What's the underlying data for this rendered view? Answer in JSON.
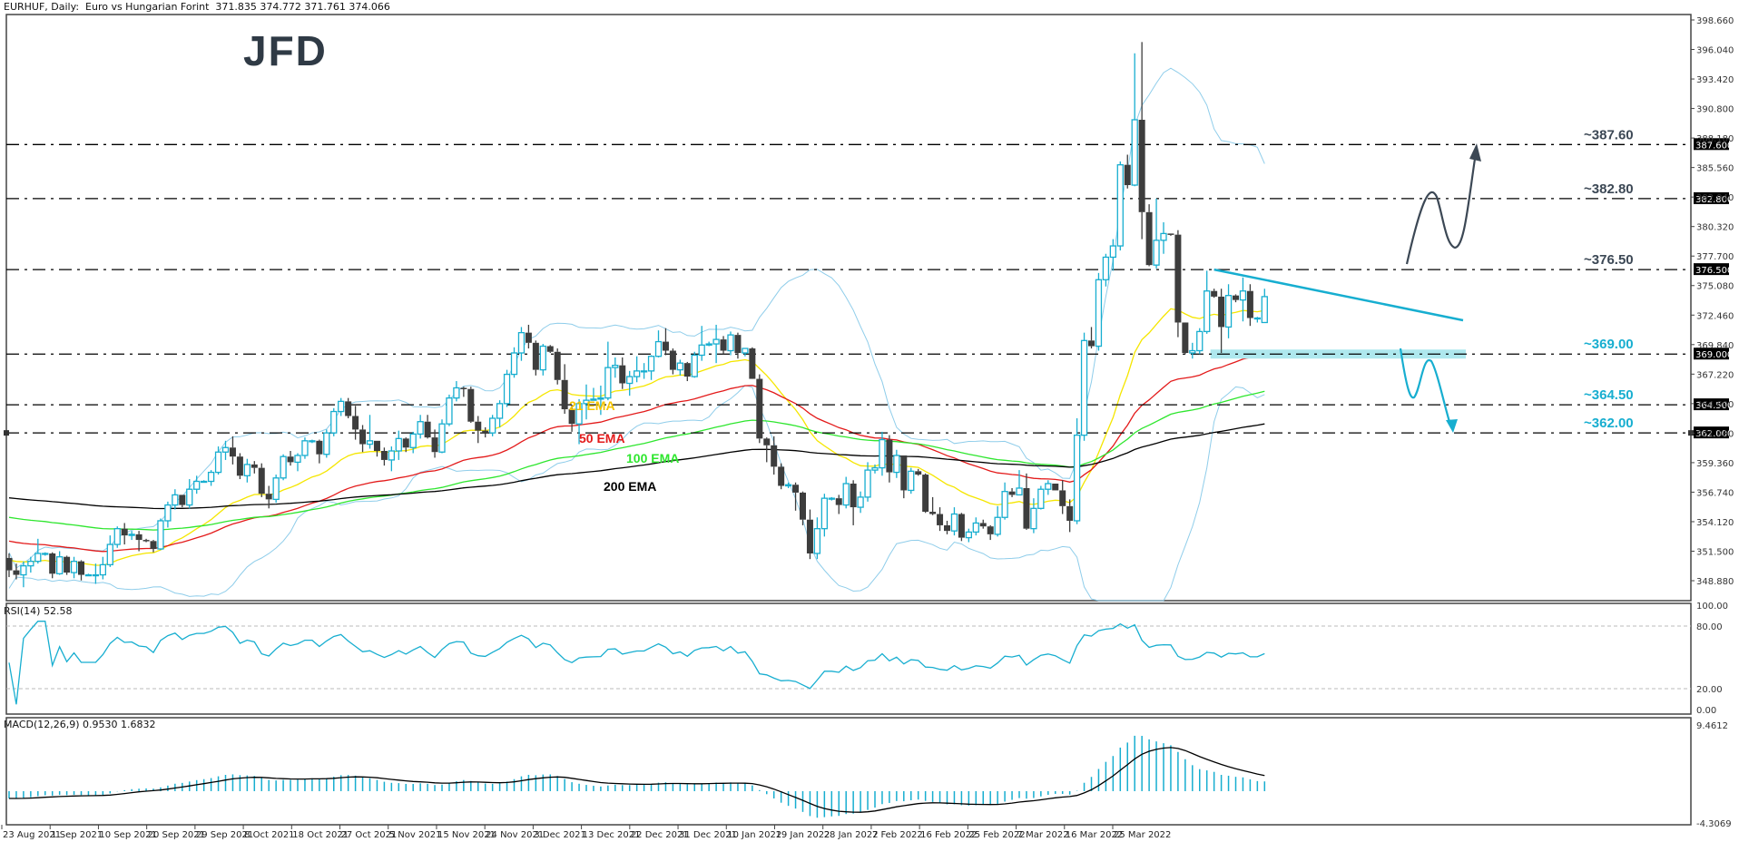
{
  "header": {
    "symbol": "EURHUF",
    "timeframe": "Daily",
    "description": "Euro vs Hungarian Forint",
    "ohlc": "371.835 374.772 371.761 374.066",
    "text": "EURHUF, Daily:  Euro vs Hungarian Forint  371.835 374.772 371.761 374.066"
  },
  "logo": {
    "text": "JFD",
    "color": "#2f3a45"
  },
  "colors": {
    "bull": "#17aed0",
    "bear": "#3d3d3d",
    "ema21": "#f5e600",
    "ema50": "#e31a1a",
    "ema100": "#2ee62e",
    "ema200": "#000000",
    "bollinger": "#8fcdea",
    "trendline": "#17aed0",
    "support_zone": "#aee8ee",
    "annotation_up": "#3c4855",
    "annotation_down": "#17aed0",
    "rsi": "#17aed0",
    "macd_hist": "#17aed0",
    "macd_signal": "#000000"
  },
  "indicators": {
    "rsi_label": "RSI(14) 52.58",
    "macd_label": "MACD(12,26,9) 0.9530 1.6832"
  },
  "ema_labels": [
    {
      "text": "21 EMA",
      "color": "#f5c400"
    },
    {
      "text": "50 EMA",
      "color": "#e31a1a"
    },
    {
      "text": "100 EMA",
      "color": "#2ee62e"
    },
    {
      "text": "200 EMA",
      "color": "#000000"
    }
  ],
  "levels": [
    {
      "price": 387.6,
      "label": "~387.60",
      "axis_label": "387.600",
      "color": "#3c4855"
    },
    {
      "price": 382.8,
      "label": "~382.80",
      "axis_label": "382.800",
      "color": "#3c4855"
    },
    {
      "price": 376.5,
      "label": "~376.50",
      "axis_label": "376.500",
      "color": "#3c4855"
    },
    {
      "price": 369.0,
      "label": "~369.00",
      "axis_label": "369.000",
      "color": "#17aed0"
    },
    {
      "price": 364.5,
      "label": "~364.50",
      "axis_label": "364.500",
      "color": "#17aed0"
    },
    {
      "price": 362.0,
      "label": "~362.00",
      "axis_label": "362.000",
      "color": "#17aed0"
    }
  ],
  "chart_data": {
    "type": "candlestick",
    "title": "EURHUF, Daily: Euro vs Hungarian Forint",
    "price_axis_ticks": [
      398.66,
      396.04,
      393.42,
      390.8,
      388.18,
      385.56,
      382.94,
      380.32,
      377.7,
      375.08,
      372.46,
      369.84,
      367.22,
      364.6,
      361.98,
      359.36,
      356.74,
      354.12,
      351.5,
      348.88
    ],
    "price_axis_tick_labels": [
      "398.660",
      "396.040",
      "393.420",
      "390.800",
      "388.180",
      "385.560",
      "382.940",
      "380.320",
      "377.700",
      "375.080",
      "372.460",
      "369.840",
      "367.220",
      "364.600",
      "361.980",
      "359.360",
      "356.740",
      "354.120",
      "351.500",
      "348.880"
    ],
    "ylim": [
      347.5,
      399.9
    ],
    "date_axis_labels": [
      "23 Aug 2021",
      "1 Sep 2021",
      "10 Sep 2021",
      "20 Sep 2021",
      "29 Sep 2021",
      "8 Oct 2021",
      "18 Oct 2021",
      "27 Oct 2021",
      "5 Nov 2021",
      "15 Nov 2021",
      "24 Nov 2021",
      "3 Dec 2021",
      "13 Dec 2021",
      "22 Dec 2021",
      "31 Dec 2021",
      "10 Jan 2022",
      "19 Jan 2022",
      "28 Jan 2022",
      "7 Feb 2022",
      "16 Feb 2022",
      "25 Feb 2022",
      "7 Mar 2022",
      "16 Mar 2022",
      "25 Mar 2022"
    ],
    "candles": [
      [
        350.9,
        351.3,
        349.2,
        349.8
      ],
      [
        349.8,
        350.4,
        349.0,
        349.4
      ],
      [
        349.4,
        350.6,
        348.3,
        350.2
      ],
      [
        350.2,
        351.0,
        349.6,
        350.6
      ],
      [
        350.6,
        352.6,
        350.4,
        351.3
      ],
      [
        351.3,
        351.4,
        351.1,
        351.3
      ],
      [
        351.3,
        351.4,
        349.1,
        349.5
      ],
      [
        349.5,
        351.5,
        349.4,
        351.0
      ],
      [
        351.0,
        351.1,
        349.4,
        349.6
      ],
      [
        349.6,
        351.0,
        349.1,
        350.6
      ],
      [
        350.6,
        350.7,
        348.9,
        349.4
      ],
      [
        349.4,
        349.5,
        349.3,
        349.4
      ],
      [
        349.4,
        350.4,
        348.6,
        349.4
      ],
      [
        349.4,
        351.0,
        349.0,
        350.3
      ],
      [
        350.3,
        352.9,
        350.1,
        352.1
      ],
      [
        352.1,
        353.7,
        351.8,
        353.5
      ],
      [
        353.5,
        354.0,
        352.1,
        352.9
      ],
      [
        352.9,
        353.3,
        352.5,
        353.0
      ],
      [
        353.0,
        353.3,
        351.5,
        352.5
      ],
      [
        352.5,
        352.6,
        352.3,
        352.4
      ],
      [
        352.4,
        352.5,
        351.4,
        351.7
      ],
      [
        351.7,
        354.4,
        351.6,
        354.2
      ],
      [
        354.2,
        355.9,
        353.6,
        355.6
      ],
      [
        355.6,
        357.0,
        355.2,
        356.5
      ],
      [
        356.5,
        356.5,
        355.4,
        355.6
      ],
      [
        355.6,
        357.9,
        355.3,
        357.0
      ],
      [
        357.0,
        358.2,
        356.6,
        357.7
      ],
      [
        357.7,
        357.8,
        357.6,
        357.7
      ],
      [
        357.7,
        358.7,
        357.3,
        358.5
      ],
      [
        358.5,
        360.8,
        358.3,
        360.3
      ],
      [
        360.3,
        361.3,
        359.6,
        360.7
      ],
      [
        360.7,
        361.7,
        359.2,
        359.9
      ],
      [
        359.9,
        360.2,
        357.9,
        358.2
      ],
      [
        358.2,
        359.7,
        357.6,
        359.2
      ],
      [
        359.2,
        359.5,
        358.4,
        358.9
      ],
      [
        358.9,
        359.3,
        356.3,
        356.6
      ],
      [
        356.6,
        357.3,
        355.3,
        356.1
      ],
      [
        356.1,
        358.3,
        355.8,
        358.0
      ],
      [
        358.0,
        360.1,
        357.8,
        359.9
      ],
      [
        359.9,
        360.4,
        359.1,
        359.4
      ],
      [
        359.4,
        360.2,
        358.6,
        360.0
      ],
      [
        360.0,
        361.6,
        359.7,
        361.3
      ],
      [
        361.3,
        361.4,
        361.1,
        361.3
      ],
      [
        361.3,
        361.4,
        359.3,
        360.1
      ],
      [
        360.1,
        362.3,
        359.8,
        362.0
      ],
      [
        362.0,
        364.2,
        361.7,
        363.9
      ],
      [
        363.9,
        365.1,
        363.5,
        364.8
      ],
      [
        364.8,
        365.1,
        363.3,
        363.5
      ],
      [
        363.5,
        364.4,
        361.4,
        362.3
      ],
      [
        362.3,
        362.7,
        360.3,
        361.0
      ],
      [
        361.0,
        363.6,
        360.6,
        361.3
      ],
      [
        361.3,
        361.3,
        359.9,
        360.4
      ],
      [
        360.4,
        360.7,
        359.1,
        359.6
      ],
      [
        359.6,
        360.8,
        358.6,
        360.4
      ],
      [
        360.4,
        362.2,
        359.6,
        361.5
      ],
      [
        361.5,
        361.6,
        360.3,
        360.7
      ],
      [
        360.7,
        362.1,
        360.2,
        361.9
      ],
      [
        361.9,
        363.6,
        361.5,
        363.0
      ],
      [
        363.0,
        363.6,
        361.5,
        361.6
      ],
      [
        361.6,
        362.3,
        359.8,
        360.3
      ],
      [
        360.3,
        363.2,
        360.2,
        362.8
      ],
      [
        362.8,
        365.4,
        362.6,
        365.1
      ],
      [
        365.1,
        366.6,
        364.8,
        366.0
      ],
      [
        366.0,
        366.1,
        365.2,
        365.9
      ],
      [
        365.9,
        366.1,
        362.9,
        363.0
      ],
      [
        363.0,
        363.5,
        361.1,
        362.2
      ],
      [
        362.2,
        362.5,
        361.6,
        362.0
      ],
      [
        362.0,
        363.6,
        361.7,
        363.3
      ],
      [
        363.3,
        364.9,
        362.5,
        364.6
      ],
      [
        364.6,
        367.6,
        364.3,
        367.2
      ],
      [
        367.2,
        369.6,
        366.9,
        369.1
      ],
      [
        369.1,
        371.4,
        368.4,
        370.9
      ],
      [
        370.9,
        371.6,
        369.5,
        370.0
      ],
      [
        370.0,
        370.2,
        367.1,
        367.6
      ],
      [
        367.6,
        369.9,
        367.1,
        369.7
      ],
      [
        369.7,
        369.8,
        369.1,
        369.2
      ],
      [
        369.2,
        369.5,
        366.3,
        366.7
      ],
      [
        366.7,
        368.1,
        363.7,
        364.1
      ],
      [
        364.1,
        364.5,
        362.1,
        362.8
      ],
      [
        362.8,
        365.0,
        361.0,
        364.6
      ],
      [
        364.6,
        366.3,
        363.2,
        364.9
      ],
      [
        364.9,
        366.0,
        364.9,
        365.0
      ],
      [
        365.0,
        366.2,
        363.6,
        365.1
      ],
      [
        365.1,
        370.1,
        364.9,
        367.8
      ],
      [
        367.8,
        368.7,
        366.9,
        368.0
      ],
      [
        368.0,
        368.7,
        365.9,
        366.4
      ],
      [
        366.4,
        367.5,
        365.3,
        367.0
      ],
      [
        367.0,
        368.8,
        366.5,
        367.5
      ],
      [
        367.5,
        368.2,
        366.8,
        367.5
      ],
      [
        367.5,
        368.9,
        366.7,
        368.8
      ],
      [
        368.8,
        371.1,
        368.7,
        370.1
      ],
      [
        370.1,
        371.3,
        368.9,
        369.3
      ],
      [
        369.3,
        369.5,
        367.2,
        367.6
      ],
      [
        367.6,
        368.5,
        367.1,
        368.2
      ],
      [
        368.2,
        368.3,
        366.6,
        367.0
      ],
      [
        367.0,
        369.2,
        366.9,
        368.9
      ],
      [
        368.9,
        371.5,
        368.4,
        369.8
      ],
      [
        369.8,
        370.1,
        369.7,
        369.9
      ],
      [
        369.9,
        371.6,
        368.2,
        370.3
      ],
      [
        370.3,
        370.6,
        369.0,
        369.3
      ],
      [
        369.3,
        371.0,
        368.9,
        370.7
      ],
      [
        370.7,
        370.9,
        368.6,
        369.1
      ],
      [
        369.1,
        369.5,
        368.8,
        369.5
      ],
      [
        369.5,
        369.6,
        366.9,
        366.8
      ],
      [
        366.8,
        367.2,
        361.1,
        361.5
      ],
      [
        361.5,
        361.6,
        359.4,
        360.9
      ],
      [
        360.9,
        361.7,
        358.3,
        359.0
      ],
      [
        359.0,
        359.3,
        357.0,
        357.3
      ],
      [
        357.3,
        357.6,
        357.1,
        357.4
      ],
      [
        357.4,
        357.6,
        355.1,
        356.7
      ],
      [
        356.7,
        356.8,
        353.8,
        354.3
      ],
      [
        354.3,
        355.2,
        350.8,
        351.3
      ],
      [
        351.3,
        354.5,
        350.8,
        353.5
      ],
      [
        353.5,
        356.6,
        352.8,
        356.2
      ],
      [
        356.2,
        356.3,
        356.0,
        356.2
      ],
      [
        356.2,
        356.5,
        354.8,
        355.6
      ],
      [
        355.6,
        358.1,
        355.3,
        357.5
      ],
      [
        357.5,
        357.8,
        353.8,
        355.4
      ],
      [
        355.4,
        356.8,
        354.9,
        356.3
      ],
      [
        356.3,
        359.4,
        355.9,
        358.7
      ],
      [
        358.7,
        359.2,
        358.4,
        358.9
      ],
      [
        358.9,
        362.1,
        358.2,
        361.4
      ],
      [
        361.4,
        361.8,
        357.6,
        358.5
      ],
      [
        358.5,
        360.5,
        358.0,
        360.0
      ],
      [
        360.0,
        360.0,
        356.2,
        356.9
      ],
      [
        356.9,
        358.9,
        356.6,
        358.6
      ],
      [
        358.6,
        358.8,
        358.2,
        358.3
      ],
      [
        358.3,
        358.4,
        354.9,
        355.0
      ],
      [
        355.0,
        356.3,
        354.7,
        354.8
      ],
      [
        354.8,
        355.4,
        353.3,
        353.8
      ],
      [
        353.8,
        354.2,
        353.0,
        353.3
      ],
      [
        353.3,
        355.4,
        352.9,
        354.8
      ],
      [
        354.8,
        354.9,
        352.4,
        352.7
      ],
      [
        352.7,
        353.5,
        352.3,
        353.2
      ],
      [
        353.2,
        354.5,
        352.9,
        354.0
      ],
      [
        354.0,
        354.3,
        353.5,
        353.7
      ],
      [
        353.7,
        353.8,
        352.5,
        353.0
      ],
      [
        353.0,
        355.5,
        352.8,
        354.5
      ],
      [
        354.5,
        357.6,
        354.3,
        356.8
      ],
      [
        356.8,
        357.1,
        356.3,
        356.5
      ],
      [
        356.5,
        358.7,
        356.7,
        357.1
      ],
      [
        357.1,
        358.4,
        353.4,
        353.5
      ],
      [
        353.5,
        356.2,
        353.1,
        355.3
      ],
      [
        355.3,
        357.3,
        355.2,
        357.0
      ],
      [
        357.0,
        357.8,
        356.5,
        357.5
      ],
      [
        357.5,
        357.5,
        356.9,
        356.9
      ],
      [
        356.9,
        357.8,
        354.8,
        355.5
      ],
      [
        355.5,
        356.1,
        353.2,
        354.2
      ],
      [
        354.2,
        363.3,
        353.9,
        361.8
      ],
      [
        361.8,
        370.9,
        361.3,
        370.2
      ],
      [
        370.2,
        371.4,
        369.5,
        369.7
      ],
      [
        369.7,
        376.2,
        369.3,
        375.6
      ],
      [
        375.6,
        377.9,
        375.0,
        377.6
      ],
      [
        377.6,
        379.2,
        376.4,
        378.6
      ],
      [
        378.6,
        386.1,
        378.2,
        385.8
      ],
      [
        385.8,
        386.7,
        383.7,
        384.0
      ],
      [
        384.0,
        395.7,
        383.9,
        389.8
      ],
      [
        389.8,
        396.7,
        379.2,
        381.6
      ],
      [
        381.6,
        382.3,
        376.8,
        376.9
      ],
      [
        376.9,
        382.8,
        376.6,
        379.1
      ],
      [
        379.1,
        380.7,
        377.9,
        379.7
      ],
      [
        379.7,
        379.7,
        379.5,
        379.6
      ],
      [
        379.6,
        380.0,
        370.5,
        371.8
      ],
      [
        371.8,
        370.9,
        369.0,
        369.1
      ],
      [
        369.1,
        370.0,
        368.6,
        369.3
      ],
      [
        369.3,
        371.3,
        369.0,
        371.0
      ],
      [
        371.0,
        376.4,
        370.8,
        374.6
      ],
      [
        374.6,
        374.8,
        374.0,
        374.1
      ],
      [
        374.1,
        374.8,
        369.1,
        371.4
      ],
      [
        371.4,
        375.2,
        370.4,
        374.2
      ],
      [
        374.2,
        374.3,
        373.6,
        373.8
      ],
      [
        373.8,
        375.8,
        371.9,
        374.6
      ],
      [
        374.6,
        375.2,
        371.5,
        372.2
      ],
      [
        372.2,
        372.3,
        371.8,
        372.2
      ],
      [
        371.8,
        374.8,
        371.8,
        374.1
      ]
    ],
    "series": [
      {
        "name": "21 EMA",
        "values_hint": "yellow, tracks price"
      },
      {
        "name": "50 EMA",
        "values_hint": "red, ends ~369.6"
      },
      {
        "name": "100 EMA",
        "values_hint": "green, ends ~366.0"
      },
      {
        "name": "200 EMA",
        "values_hint": "black, ends ~362.8"
      }
    ],
    "horizontal_levels": [
      387.6,
      382.8,
      376.5,
      369.0,
      364.5,
      362.0
    ],
    "rsi": {
      "label": "RSI(14)",
      "last": 52.58,
      "levels": [
        20,
        80
      ],
      "ylim": [
        0,
        100
      ],
      "tick_labels": [
        "100.00",
        "80.00",
        "20.00",
        "0.00"
      ]
    },
    "macd": {
      "label": "MACD(12,26,9)",
      "main": 0.953,
      "signal": 1.6832,
      "ylim": [
        -4.3069,
        9.4612
      ],
      "tick_labels": [
        "9.4612",
        "-4.3069"
      ]
    }
  }
}
